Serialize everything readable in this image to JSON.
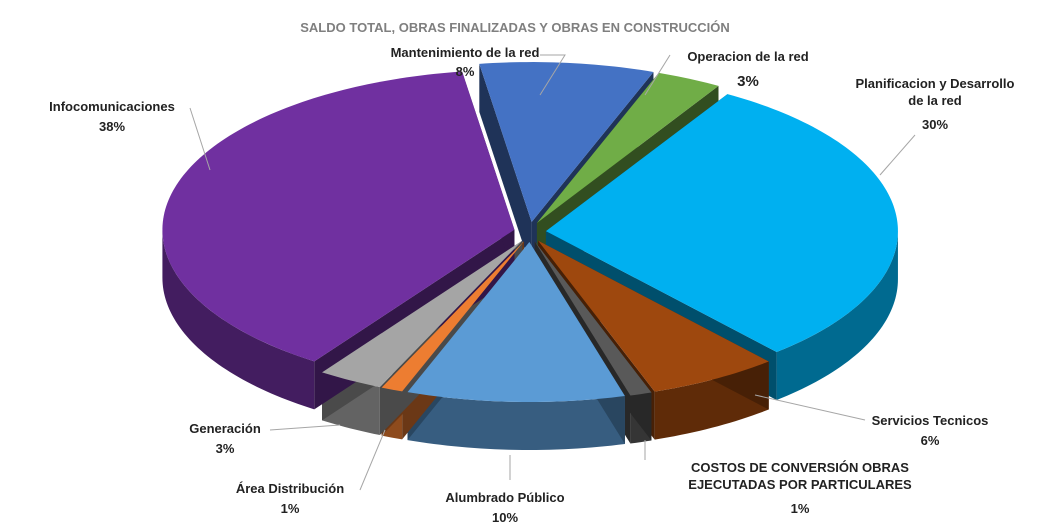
{
  "chart_data": {
    "type": "pie",
    "title": "SALDO TOTAL, OBRAS FINALIZADAS Y OBRAS EN CONSTRUCCIÓN",
    "categories": [
      "Mantenimiento de la red",
      "Operacion de la red",
      "Planificacion y Desarrollo de la red",
      "Servicios Tecnicos",
      "COSTOS DE CONVERSIÓN OBRAS EJECUTADAS POR PARTICULARES",
      "Alumbrado Público",
      "Área Distribución",
      "Generación",
      "Infocomunicaciones"
    ],
    "values": [
      8,
      3,
      30,
      6,
      1,
      10,
      1,
      3,
      38
    ],
    "value_labels": [
      "8%",
      "3%",
      "30%",
      "6%",
      "1%",
      "10%",
      "1%",
      "3%",
      "38%"
    ],
    "colors": [
      "#4472c4",
      "#70ad47",
      "#00b0f0",
      "#9e480e",
      "#595959",
      "#5b9bd5",
      "#ed7d31",
      "#a5a5a5",
      "#7030a0"
    ]
  }
}
